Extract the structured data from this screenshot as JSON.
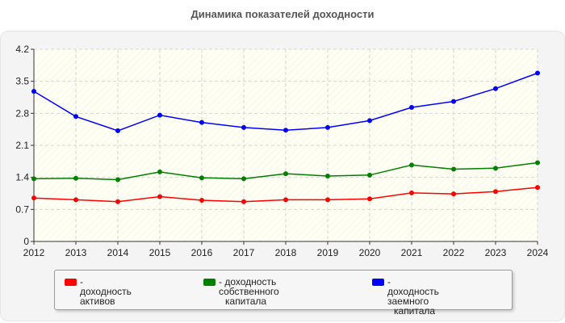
{
  "title": "Динамика показателей доходности",
  "chart_data": {
    "type": "line",
    "x": [
      "2012",
      "2013",
      "2014",
      "2015",
      "2016",
      "2017",
      "2018",
      "2019",
      "2020",
      "2021",
      "2022",
      "2023",
      "2024"
    ],
    "ylim": [
      0,
      4.2
    ],
    "yticks": [
      "0",
      "0.7",
      "1.4",
      "2.1",
      "2.8",
      "3.5",
      "4.2"
    ],
    "grid": true,
    "legend_position": "bottom",
    "series": [
      {
        "name": "- доходность активов",
        "color": "#ff0000",
        "legend_lines": [
          "- доходность активов"
        ],
        "values": [
          0.95,
          0.91,
          0.87,
          0.98,
          0.9,
          0.87,
          0.91,
          0.91,
          0.93,
          1.06,
          1.04,
          1.09,
          1.18
        ]
      },
      {
        "name": "- доходность собственного капитала",
        "color": "#008000",
        "legend_lines": [
          "- доходность собственного",
          "капитала"
        ],
        "values": [
          1.37,
          1.38,
          1.35,
          1.52,
          1.39,
          1.37,
          1.48,
          1.43,
          1.45,
          1.67,
          1.58,
          1.6,
          1.72
        ]
      },
      {
        "name": "- доходность заемного капитала",
        "color": "#0000ff",
        "legend_lines": [
          "- доходность заемного",
          "капитала"
        ],
        "values": [
          3.28,
          2.73,
          2.42,
          2.76,
          2.6,
          2.49,
          2.43,
          2.49,
          2.64,
          2.93,
          3.06,
          3.34,
          3.68
        ]
      }
    ]
  }
}
